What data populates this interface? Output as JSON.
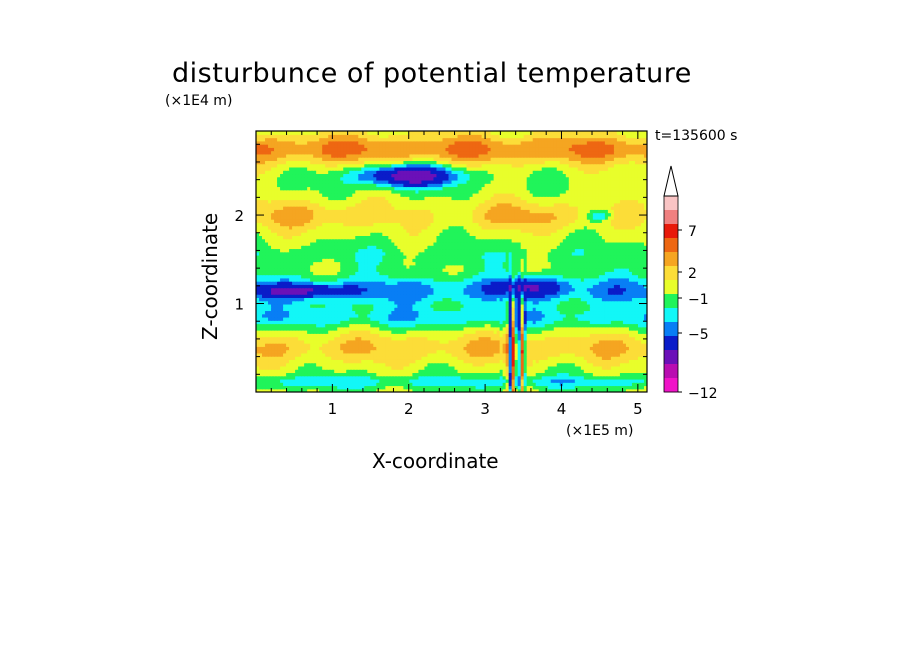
{
  "chart_data": {
    "type": "heatmap",
    "title": "disturbunce of potential temperature",
    "xlabel": "X-coordinate",
    "ylabel": "Z-coordinate",
    "x_unit": "(×1E5 m)",
    "y_unit": "(×1E4 m)",
    "time_label": "t=135600 s",
    "xlim": [
      0,
      5.12
    ],
    "ylim": [
      0,
      2.95
    ],
    "x_ticks": [
      "1",
      "2",
      "3",
      "4",
      "5"
    ],
    "y_ticks": [
      "1",
      "2"
    ],
    "colorbar": {
      "labels": [
        "7",
        "2",
        "−1",
        "−5",
        "−12"
      ],
      "colors_top_to_bottom": [
        "#f9c4c4",
        "#f08080",
        "#e8190a",
        "#ee6712",
        "#f5a521",
        "#fcdd38",
        "#e8fe2b",
        "#20f45a",
        "#12f7f7",
        "#087ef5",
        "#0a1cc9",
        "#6b10b8",
        "#b90db1",
        "#f013c8"
      ],
      "extend_top": true
    },
    "fields": {
      "layers": [
        {
          "z": 2.72,
          "value": 2,
          "desc": "orange upper band"
        },
        {
          "z": 2.45,
          "value": -4,
          "desc": "blue core 1.3-2.2"
        },
        {
          "z": 1.95,
          "value": 1,
          "desc": "yellow/orange mid"
        },
        {
          "z": 1.55,
          "value": 0,
          "desc": "green band"
        },
        {
          "z": 1.15,
          "value": -2,
          "desc": "cyan/blue band"
        },
        {
          "z": 0.85,
          "value": -1,
          "desc": "cyan lower"
        },
        {
          "z": 0.45,
          "value": 1,
          "desc": "yellow near surface"
        },
        {
          "z": 0.15,
          "value": -1,
          "desc": "cyan near ground"
        }
      ]
    }
  }
}
